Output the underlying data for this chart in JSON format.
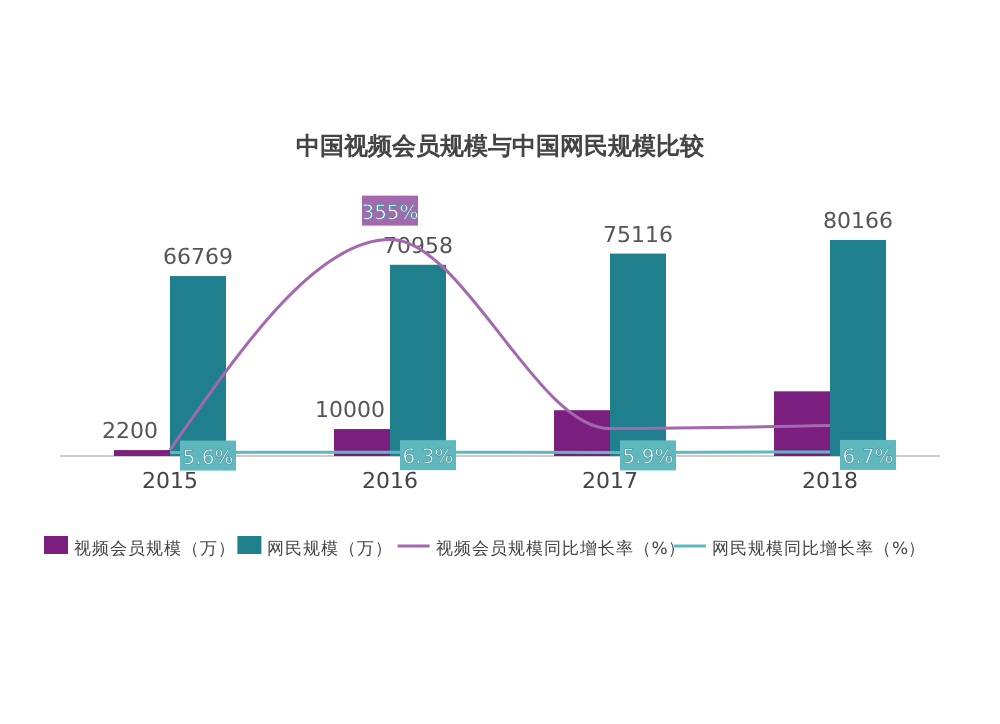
{
  "chart_data": {
    "type": "bar",
    "title": "中国视频会员规模与中国网民规模比较",
    "categories": [
      "2015",
      "2016",
      "2017",
      "2018"
    ],
    "ylim": [
      0,
      95000
    ],
    "y2lim": [
      0,
      420
    ],
    "tick_labels": "x",
    "legend": "bottom",
    "grid": false,
    "series": [
      {
        "name": "视频会员规模（万）",
        "color": "#7b1f7e",
        "values": [
          2200,
          10000,
          17000,
          24000
        ],
        "value_labels": [
          "2200",
          "10000",
          null,
          null
        ]
      },
      {
        "name": "网民规模（万）",
        "color": "#1f7f8c",
        "values": [
          66769,
          70958,
          75116,
          80166
        ],
        "value_labels": [
          "66769",
          "70958",
          "75116",
          "80166"
        ]
      },
      {
        "name": "视频会员规模同比增长率（%）",
        "type": "line",
        "axis": "y2",
        "color": "#a368ad",
        "values": [
          10,
          355,
          45,
          50
        ],
        "value_labels": [
          null,
          "355%",
          null,
          null
        ]
      },
      {
        "name": "网民规模同比增长率（%）",
        "type": "line",
        "axis": "y2",
        "color": "#5fb8be",
        "values": [
          5.6,
          6.3,
          5.9,
          6.7
        ],
        "value_labels": [
          "5.6%",
          "6.3%",
          "5.9%",
          "6.7%"
        ]
      }
    ]
  }
}
